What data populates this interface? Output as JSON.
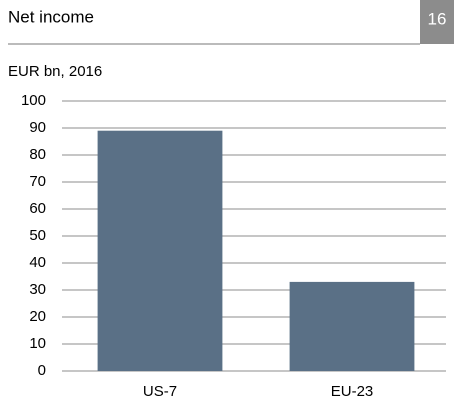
{
  "chart_data": {
    "type": "bar",
    "title": "Net income",
    "page_number": "16",
    "subtitle": "EUR bn, 2016",
    "categories": [
      "US-7",
      "EU-23"
    ],
    "values": [
      89,
      33
    ],
    "color": "#5a7086",
    "ylim": [
      0,
      100
    ],
    "yticks": [
      0,
      10,
      20,
      30,
      40,
      50,
      60,
      70,
      80,
      90,
      100
    ],
    "grid": true
  }
}
